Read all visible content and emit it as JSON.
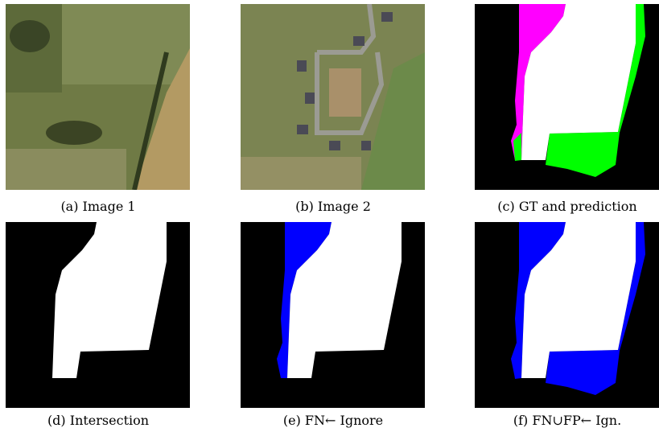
{
  "panels": [
    {
      "caption": "(a) Image 1"
    },
    {
      "caption": "(b) Image 2"
    },
    {
      "caption": "(c) GT and prediction"
    },
    {
      "caption": "(d) Intersection"
    },
    {
      "caption": "(e) FN← Ignore"
    },
    {
      "caption": "(f) FN∪FP← Ign."
    }
  ]
}
